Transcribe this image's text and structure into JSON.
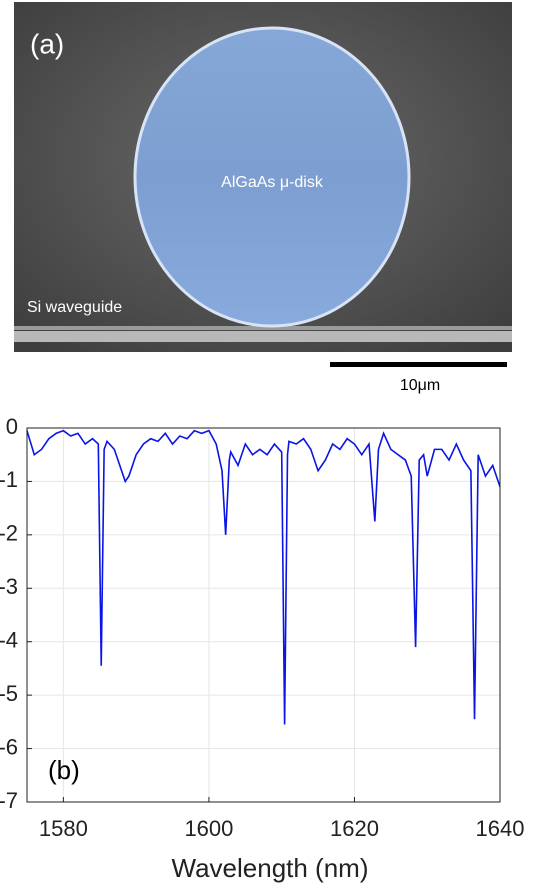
{
  "panel_a": {
    "label": "(a)",
    "disk_label": "AlGaAs μ-disk",
    "waveguide_label": "Si waveguide",
    "scale_bar_label": "10μm"
  },
  "chart_data": {
    "type": "line",
    "annotation": "(b)",
    "x_label": "Wavelength (nm)",
    "x": [
      1575,
      1576,
      1577,
      1578,
      1579,
      1580,
      1581,
      1582,
      1583,
      1584,
      1584.8,
      1585.2,
      1585.6,
      1586,
      1587,
      1588,
      1588.5,
      1589,
      1590,
      1591,
      1592,
      1593,
      1594,
      1595,
      1596,
      1597,
      1598,
      1599,
      1600,
      1601,
      1601.8,
      1602.3,
      1602.8,
      1603,
      1604,
      1605,
      1606,
      1607,
      1608,
      1609,
      1610,
      1610.4,
      1610.8,
      1611,
      1612,
      1613,
      1614,
      1615,
      1616,
      1617,
      1618,
      1619,
      1620,
      1621,
      1622,
      1622.8,
      1623.3,
      1624,
      1625,
      1626,
      1627,
      1627.8,
      1628.4,
      1628.9,
      1629.5,
      1630,
      1631,
      1632,
      1633,
      1634,
      1635,
      1636,
      1636.5,
      1637,
      1638,
      1639,
      1640
    ],
    "series": [
      {
        "color": "#0a14e6",
        "values": [
          -0.05,
          -0.5,
          -0.4,
          -0.2,
          -0.1,
          -0.05,
          -0.15,
          -0.1,
          -0.3,
          -0.2,
          -0.3,
          -4.45,
          -0.4,
          -0.25,
          -0.4,
          -0.8,
          -1.0,
          -0.9,
          -0.5,
          -0.3,
          -0.2,
          -0.25,
          -0.1,
          -0.3,
          -0.15,
          -0.2,
          -0.05,
          -0.1,
          -0.05,
          -0.3,
          -0.8,
          -2.0,
          -0.6,
          -0.45,
          -0.7,
          -0.3,
          -0.5,
          -0.4,
          -0.5,
          -0.3,
          -0.45,
          -5.55,
          -0.5,
          -0.25,
          -0.3,
          -0.2,
          -0.4,
          -0.8,
          -0.6,
          -0.3,
          -0.4,
          -0.2,
          -0.3,
          -0.5,
          -0.3,
          -1.75,
          -0.4,
          -0.1,
          -0.4,
          -0.5,
          -0.6,
          -0.9,
          -4.1,
          -0.6,
          -0.5,
          -0.9,
          -0.4,
          -0.4,
          -0.6,
          -0.3,
          -0.6,
          -0.8,
          -5.45,
          -0.5,
          -0.9,
          -0.7,
          -1.1
        ]
      }
    ],
    "xlim": [
      1575,
      1640
    ],
    "xticks": [
      1580,
      1600,
      1620,
      1640
    ],
    "ylim": [
      -7,
      0
    ],
    "yticks": [
      0,
      -1,
      -2,
      -3,
      -4,
      -5,
      -6,
      -7
    ],
    "grid": true
  }
}
